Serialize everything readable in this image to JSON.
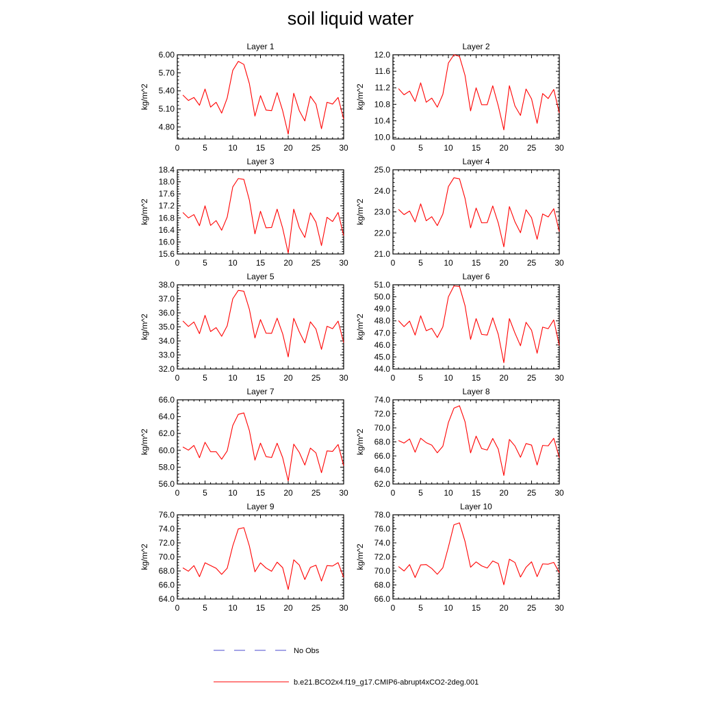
{
  "title": "soil liquid water",
  "legend": [
    {
      "label": "No Obs",
      "color": "#4a4acc",
      "style": "dashed"
    },
    {
      "label": "b.e21.BCO2x4.f19_g17.CMIP6-abrupt4xCO2-2deg.001",
      "color": "#ff0000",
      "style": "solid"
    }
  ],
  "chart_data": [
    {
      "type": "line",
      "title": "Layer 1",
      "xlabel": "",
      "ylabel": "kg/m^2",
      "xlim": [
        0,
        30
      ],
      "ylim": [
        4.6,
        6.0
      ],
      "xticks": [
        "0",
        "5",
        "10",
        "15",
        "20",
        "25",
        "30"
      ],
      "yticks": [
        "4.80",
        "5.10",
        "5.40",
        "5.70",
        "6.00"
      ],
      "x": [
        1,
        2,
        3,
        4,
        5,
        6,
        7,
        8,
        9,
        10,
        11,
        12,
        13,
        14,
        15,
        16,
        17,
        18,
        19,
        20,
        21,
        22,
        23,
        24,
        25,
        26,
        27,
        28,
        29,
        30
      ],
      "series": [
        {
          "name": "b.e21.BCO2x4.f19_g17.CMIP6-abrupt4xCO2-2deg.001",
          "color": "#ff0000",
          "values": [
            5.33,
            5.24,
            5.29,
            5.16,
            5.43,
            5.13,
            5.21,
            5.03,
            5.28,
            5.74,
            5.89,
            5.84,
            5.52,
            4.98,
            5.32,
            5.08,
            5.07,
            5.37,
            5.07,
            4.68,
            5.36,
            5.07,
            4.9,
            5.31,
            5.18,
            4.77,
            5.21,
            5.18,
            5.29,
            4.93
          ]
        }
      ]
    },
    {
      "type": "line",
      "title": "Layer 2",
      "xlabel": "",
      "ylabel": "kg/m^2",
      "xlim": [
        0,
        30
      ],
      "ylim": [
        9.96,
        12.0
      ],
      "xticks": [
        "0",
        "5",
        "10",
        "15",
        "20",
        "25",
        "30"
      ],
      "yticks": [
        "10.0",
        "10.4",
        "10.8",
        "11.2",
        "11.6",
        "12.0"
      ],
      "x": [
        1,
        2,
        3,
        4,
        5,
        6,
        7,
        8,
        9,
        10,
        11,
        12,
        13,
        14,
        15,
        16,
        17,
        18,
        19,
        20,
        21,
        22,
        23,
        24,
        25,
        26,
        27,
        28,
        29,
        30
      ],
      "series": [
        {
          "name": "b.e21.BCO2x4.f19_g17.CMIP6-abrupt4xCO2-2deg.001",
          "color": "#ff0000",
          "values": [
            11.18,
            11.03,
            11.12,
            10.87,
            11.32,
            10.85,
            10.95,
            10.73,
            11.04,
            11.8,
            12.0,
            11.96,
            11.5,
            10.64,
            11.2,
            10.79,
            10.79,
            11.25,
            10.76,
            10.18,
            11.25,
            10.76,
            10.53,
            11.17,
            10.93,
            10.34,
            11.06,
            10.94,
            11.16,
            10.59
          ]
        }
      ]
    },
    {
      "type": "line",
      "title": "Layer 3",
      "xlabel": "",
      "ylabel": "kg/m^2",
      "xlim": [
        0,
        30
      ],
      "ylim": [
        15.6,
        18.4
      ],
      "xticks": [
        "0",
        "5",
        "10",
        "15",
        "20",
        "25",
        "30"
      ],
      "yticks": [
        "15.6",
        "16.0",
        "16.4",
        "16.8",
        "17.2",
        "17.6",
        "18.0",
        "18.4"
      ],
      "x": [
        1,
        2,
        3,
        4,
        5,
        6,
        7,
        8,
        9,
        10,
        11,
        12,
        13,
        14,
        15,
        16,
        17,
        18,
        19,
        20,
        21,
        22,
        23,
        24,
        25,
        26,
        27,
        28,
        29,
        30
      ],
      "series": [
        {
          "name": "b.e21.BCO2x4.f19_g17.CMIP6-abrupt4xCO2-2deg.001",
          "color": "#ff0000",
          "values": [
            16.98,
            16.8,
            16.91,
            16.54,
            17.2,
            16.55,
            16.71,
            16.39,
            16.83,
            17.83,
            18.11,
            18.08,
            17.39,
            16.27,
            17.02,
            16.47,
            16.48,
            17.09,
            16.46,
            15.63,
            17.09,
            16.48,
            16.15,
            16.97,
            16.66,
            15.88,
            16.82,
            16.68,
            16.98,
            16.21
          ]
        }
      ]
    },
    {
      "type": "line",
      "title": "Layer 4",
      "xlabel": "",
      "ylabel": "kg/m^2",
      "xlim": [
        0,
        30
      ],
      "ylim": [
        21.0,
        25.0
      ],
      "xticks": [
        "0",
        "5",
        "10",
        "15",
        "20",
        "25",
        "30"
      ],
      "yticks": [
        "21.0",
        "22.0",
        "23.0",
        "24.0",
        "25.0"
      ],
      "x": [
        1,
        2,
        3,
        4,
        5,
        6,
        7,
        8,
        9,
        10,
        11,
        12,
        13,
        14,
        15,
        16,
        17,
        18,
        19,
        20,
        21,
        22,
        23,
        24,
        25,
        26,
        27,
        28,
        29,
        30
      ],
      "series": [
        {
          "name": "b.e21.BCO2x4.f19_g17.CMIP6-abrupt4xCO2-2deg.001",
          "color": "#ff0000",
          "values": [
            23.12,
            22.87,
            23.04,
            22.52,
            23.38,
            22.58,
            22.77,
            22.35,
            22.9,
            24.2,
            24.62,
            24.57,
            23.64,
            22.24,
            23.18,
            22.48,
            22.49,
            23.28,
            22.47,
            21.34,
            23.25,
            22.53,
            22.01,
            23.1,
            22.72,
            21.7,
            22.9,
            22.76,
            23.15,
            22.06
          ]
        }
      ]
    },
    {
      "type": "line",
      "title": "Layer 5",
      "xlabel": "",
      "ylabel": "kg/m^2",
      "xlim": [
        0,
        30
      ],
      "ylim": [
        32.0,
        38.0
      ],
      "xticks": [
        "0",
        "5",
        "10",
        "15",
        "20",
        "25",
        "30"
      ],
      "yticks": [
        "32.0",
        "33.0",
        "34.0",
        "35.0",
        "36.0",
        "37.0",
        "38.0"
      ],
      "x": [
        1,
        2,
        3,
        4,
        5,
        6,
        7,
        8,
        9,
        10,
        11,
        12,
        13,
        14,
        15,
        16,
        17,
        18,
        19,
        20,
        21,
        22,
        23,
        24,
        25,
        26,
        27,
        28,
        29,
        30
      ],
      "series": [
        {
          "name": "b.e21.BCO2x4.f19_g17.CMIP6-abrupt4xCO2-2deg.001",
          "color": "#ff0000",
          "values": [
            35.42,
            35.03,
            35.35,
            34.52,
            35.82,
            34.67,
            34.95,
            34.33,
            35.08,
            37.0,
            37.6,
            37.54,
            36.25,
            34.21,
            35.52,
            34.55,
            34.54,
            35.62,
            34.51,
            32.86,
            35.61,
            34.65,
            33.86,
            35.36,
            34.85,
            33.4,
            35.04,
            34.87,
            35.41,
            33.88
          ]
        }
      ]
    },
    {
      "type": "line",
      "title": "Layer 6",
      "xlabel": "",
      "ylabel": "kg/m^2",
      "xlim": [
        0,
        30
      ],
      "ylim": [
        44.0,
        51.0
      ],
      "xticks": [
        "0",
        "5",
        "10",
        "15",
        "20",
        "25",
        "30"
      ],
      "yticks": [
        "44.0",
        "45.0",
        "46.0",
        "47.0",
        "48.0",
        "49.0",
        "50.0",
        "51.0"
      ],
      "x": [
        1,
        2,
        3,
        4,
        5,
        6,
        7,
        8,
        9,
        10,
        11,
        12,
        13,
        14,
        15,
        16,
        17,
        18,
        19,
        20,
        21,
        22,
        23,
        24,
        25,
        26,
        27,
        28,
        29,
        30
      ],
      "series": [
        {
          "name": "b.e21.BCO2x4.f19_g17.CMIP6-abrupt4xCO2-2deg.001",
          "color": "#ff0000",
          "values": [
            48.02,
            47.52,
            47.98,
            46.82,
            48.42,
            47.18,
            47.38,
            46.62,
            47.5,
            50.0,
            50.9,
            50.86,
            49.26,
            46.46,
            48.19,
            46.88,
            46.82,
            48.25,
            46.87,
            44.52,
            48.19,
            46.99,
            45.93,
            47.88,
            47.22,
            45.31,
            47.48,
            47.35,
            48.08,
            45.95
          ]
        }
      ]
    },
    {
      "type": "line",
      "title": "Layer 7",
      "xlabel": "",
      "ylabel": "kg/m^2",
      "xlim": [
        0,
        30
      ],
      "ylim": [
        56.0,
        66.0
      ],
      "xticks": [
        "0",
        "5",
        "10",
        "15",
        "20",
        "25",
        "30"
      ],
      "yticks": [
        "56.0",
        "58.0",
        "60.0",
        "62.0",
        "64.0",
        "66.0"
      ],
      "x": [
        1,
        2,
        3,
        4,
        5,
        6,
        7,
        8,
        9,
        10,
        11,
        12,
        13,
        14,
        15,
        16,
        17,
        18,
        19,
        20,
        21,
        22,
        23,
        24,
        25,
        26,
        27,
        28,
        29,
        30
      ],
      "series": [
        {
          "name": "b.e21.BCO2x4.f19_g17.CMIP6-abrupt4xCO2-2deg.001",
          "color": "#ff0000",
          "values": [
            60.4,
            60.02,
            60.58,
            59.12,
            60.95,
            59.84,
            59.84,
            58.94,
            59.93,
            62.94,
            64.27,
            64.44,
            62.33,
            58.83,
            60.85,
            59.26,
            59.14,
            60.84,
            59.13,
            56.37,
            60.73,
            59.75,
            58.25,
            60.26,
            59.7,
            57.34,
            59.93,
            59.87,
            60.69,
            58.18
          ]
        }
      ]
    },
    {
      "type": "line",
      "title": "Layer 8",
      "xlabel": "",
      "ylabel": "kg/m^2",
      "xlim": [
        0,
        30
      ],
      "ylim": [
        62.0,
        74.0
      ],
      "xticks": [
        "0",
        "5",
        "10",
        "15",
        "20",
        "25",
        "30"
      ],
      "yticks": [
        "62.0",
        "64.0",
        "66.0",
        "68.0",
        "70.0",
        "72.0",
        "74.0"
      ],
      "x": [
        1,
        2,
        3,
        4,
        5,
        6,
        7,
        8,
        9,
        10,
        11,
        12,
        13,
        14,
        15,
        16,
        17,
        18,
        19,
        20,
        21,
        22,
        23,
        24,
        25,
        26,
        27,
        28,
        29,
        30
      ],
      "series": [
        {
          "name": "b.e21.BCO2x4.f19_g17.CMIP6-abrupt4xCO2-2deg.001",
          "color": "#ff0000",
          "values": [
            68.19,
            67.83,
            68.42,
            66.53,
            68.52,
            67.89,
            67.54,
            66.45,
            67.38,
            70.76,
            72.8,
            73.15,
            70.87,
            66.43,
            68.82,
            67.05,
            66.84,
            68.49,
            66.96,
            63.21,
            68.35,
            67.42,
            65.81,
            67.76,
            67.54,
            64.71,
            67.5,
            67.44,
            68.52,
            65.73
          ]
        }
      ]
    },
    {
      "type": "line",
      "title": "Layer 9",
      "xlabel": "",
      "ylabel": "kg/m^2",
      "xlim": [
        0,
        30
      ],
      "ylim": [
        64.0,
        76.0
      ],
      "xticks": [
        "0",
        "5",
        "10",
        "15",
        "20",
        "25",
        "30"
      ],
      "yticks": [
        "64.0",
        "66.0",
        "68.0",
        "70.0",
        "72.0",
        "74.0",
        "76.0"
      ],
      "x": [
        1,
        2,
        3,
        4,
        5,
        6,
        7,
        8,
        9,
        10,
        11,
        12,
        13,
        14,
        15,
        16,
        17,
        18,
        19,
        20,
        21,
        22,
        23,
        24,
        25,
        26,
        27,
        28,
        29,
        30
      ],
      "series": [
        {
          "name": "b.e21.BCO2x4.f19_g17.CMIP6-abrupt4xCO2-2deg.001",
          "color": "#ff0000",
          "values": [
            68.44,
            67.96,
            68.76,
            67.18,
            69.16,
            68.77,
            68.38,
            67.51,
            68.39,
            71.56,
            73.98,
            74.17,
            71.55,
            67.88,
            69.15,
            68.42,
            67.95,
            69.25,
            68.47,
            65.36,
            69.58,
            68.84,
            66.78,
            68.5,
            68.82,
            66.55,
            68.76,
            68.7,
            69.18,
            67.08
          ]
        }
      ]
    },
    {
      "type": "line",
      "title": "Layer 10",
      "xlabel": "",
      "ylabel": "kg/m^2",
      "xlim": [
        0,
        30
      ],
      "ylim": [
        66.0,
        78.0
      ],
      "xticks": [
        "0",
        "5",
        "10",
        "15",
        "20",
        "25",
        "30"
      ],
      "yticks": [
        "66.0",
        "68.0",
        "70.0",
        "72.0",
        "74.0",
        "76.0",
        "78.0"
      ],
      "x": [
        1,
        2,
        3,
        4,
        5,
        6,
        7,
        8,
        9,
        10,
        11,
        12,
        13,
        14,
        15,
        16,
        17,
        18,
        19,
        20,
        21,
        22,
        23,
        24,
        25,
        26,
        27,
        28,
        29,
        30
      ],
      "series": [
        {
          "name": "b.e21.BCO2x4.f19_g17.CMIP6-abrupt4xCO2-2deg.001",
          "color": "#ff0000",
          "values": [
            70.63,
            69.99,
            70.9,
            69.06,
            70.86,
            70.91,
            70.35,
            69.53,
            70.45,
            73.39,
            76.57,
            76.85,
            74.2,
            70.53,
            71.29,
            70.72,
            70.41,
            71.42,
            71.05,
            68.03,
            71.67,
            71.2,
            69.13,
            70.52,
            71.3,
            69.19,
            71.0,
            70.96,
            71.22,
            69.75
          ]
        }
      ]
    }
  ]
}
